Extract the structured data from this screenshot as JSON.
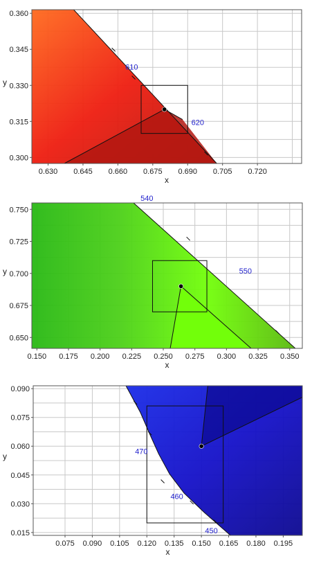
{
  "chart_data": [
    {
      "type": "chromaticity-zoom",
      "region": "red",
      "xlabel": "x",
      "ylabel": "y",
      "xlim": [
        0.623,
        0.739
      ],
      "ylim": [
        0.2975,
        0.3615
      ],
      "xticks": [
        {
          "v": 0.63,
          "label": "0.630"
        },
        {
          "v": 0.645,
          "label": "0.645"
        },
        {
          "v": 0.66,
          "label": "0.660"
        },
        {
          "v": 0.675,
          "label": "0.675"
        },
        {
          "v": 0.69,
          "label": "0.690"
        },
        {
          "v": 0.705,
          "label": "0.705"
        },
        {
          "v": 0.72,
          "label": "0.720"
        }
      ],
      "yticks": [
        {
          "v": 0.3,
          "label": "0.300"
        },
        {
          "v": 0.315,
          "label": "0.315"
        },
        {
          "v": 0.33,
          "label": "0.330"
        },
        {
          "v": 0.345,
          "label": "0.345"
        },
        {
          "v": 0.36,
          "label": "0.360"
        }
      ],
      "xgrid": [
        0.63,
        0.645,
        0.66,
        0.675,
        0.69,
        0.705,
        0.72,
        0.735
      ],
      "ygrid": [
        0.3,
        0.3075,
        0.315,
        0.3225,
        0.33,
        0.3375,
        0.345,
        0.3525,
        0.36
      ],
      "fill_colors": [
        "#ff6a1e",
        "#ee1d10",
        "#b31810"
      ],
      "locus": [
        [
          0.641,
          0.3615
        ],
        [
          0.7025,
          0.2975
        ]
      ],
      "locus_ticks": [
        [
          0.658,
          0.3447
        ],
        [
          0.6666,
          0.3331
        ],
        [
          0.6798,
          0.3199
        ],
        [
          0.6978,
          0.3015
        ]
      ],
      "wavelength_labels": [
        {
          "text": "610",
          "at": [
            0.6632,
            0.3365
          ]
        },
        {
          "text": "620",
          "at": [
            0.6916,
            0.3135
          ]
        }
      ],
      "box": {
        "x": [
          0.67,
          0.69
        ],
        "y": [
          0.31,
          0.33
        ]
      },
      "point": [
        0.68,
        0.32
      ],
      "region_border": [
        [
          0.637,
          0.2975
        ],
        [
          0.68,
          0.32
        ],
        [
          0.6878,
          0.3158
        ]
      ]
    },
    {
      "type": "chromaticity-zoom",
      "region": "green",
      "xlabel": "x",
      "ylabel": "y",
      "xlim": [
        0.146,
        0.36
      ],
      "ylim": [
        0.6415,
        0.755
      ],
      "xticks": [
        {
          "v": 0.15,
          "label": "0.150"
        },
        {
          "v": 0.175,
          "label": "0.175"
        },
        {
          "v": 0.2,
          "label": "0.200"
        },
        {
          "v": 0.225,
          "label": "0.225"
        },
        {
          "v": 0.25,
          "label": "0.250"
        },
        {
          "v": 0.275,
          "label": "0.275"
        },
        {
          "v": 0.3,
          "label": "0.300"
        },
        {
          "v": 0.325,
          "label": "0.325"
        },
        {
          "v": 0.35,
          "label": "0.350"
        }
      ],
      "yticks": [
        {
          "v": 0.65,
          "label": "0.650"
        },
        {
          "v": 0.675,
          "label": "0.675"
        },
        {
          "v": 0.7,
          "label": "0.700"
        },
        {
          "v": 0.725,
          "label": "0.725"
        },
        {
          "v": 0.75,
          "label": "0.750"
        }
      ],
      "xgrid": [
        0.15,
        0.175,
        0.2,
        0.225,
        0.25,
        0.275,
        0.3,
        0.325,
        0.35
      ],
      "ygrid": [
        0.65,
        0.6625,
        0.675,
        0.6875,
        0.7,
        0.7125,
        0.725,
        0.7375,
        0.75
      ],
      "fill_colors": [
        "#28b814",
        "#4cd018",
        "#72ff0a",
        "#5ab80e"
      ],
      "locus": [
        [
          0.2265,
          0.755
        ],
        [
          0.3545,
          0.6415
        ]
      ],
      "locus_ticks": [
        [
          0.2695,
          0.7268
        ],
        [
          0.34,
          0.654
        ]
      ],
      "wavelength_labels": [
        {
          "text": "540",
          "at": [
            0.232,
            0.7565
          ]
        },
        {
          "text": "550",
          "at": [
            0.31,
            0.7
          ]
        }
      ],
      "box": {
        "x": [
          0.2415,
          0.2845
        ],
        "y": [
          0.67,
          0.71
        ]
      },
      "point": [
        0.264,
        0.69
      ],
      "region_border": [
        [
          0.2555,
          0.6415
        ],
        [
          0.264,
          0.69
        ],
        [
          0.3195,
          0.6415
        ]
      ]
    },
    {
      "type": "chromaticity-zoom",
      "region": "blue",
      "xlabel": "x",
      "ylabel": "y",
      "xlim": [
        0.0575,
        0.2055
      ],
      "ylim": [
        0.0135,
        0.0915
      ],
      "xticks": [
        {
          "v": 0.075,
          "label": "0.075"
        },
        {
          "v": 0.09,
          "label": "0.090"
        },
        {
          "v": 0.105,
          "label": "0.105"
        },
        {
          "v": 0.12,
          "label": "0.120"
        },
        {
          "v": 0.135,
          "label": "0.135"
        },
        {
          "v": 0.15,
          "label": "0.150"
        },
        {
          "v": 0.165,
          "label": "0.165"
        },
        {
          "v": 0.18,
          "label": "0.180"
        },
        {
          "v": 0.195,
          "label": "0.195"
        }
      ],
      "yticks": [
        {
          "v": 0.015,
          "label": "0.015"
        },
        {
          "v": 0.03,
          "label": "0.030"
        },
        {
          "v": 0.045,
          "label": "0.045"
        },
        {
          "v": 0.06,
          "label": "0.060"
        },
        {
          "v": 0.075,
          "label": "0.075"
        },
        {
          "v": 0.09,
          "label": "0.090"
        }
      ],
      "xgrid": [
        0.075,
        0.09,
        0.105,
        0.12,
        0.135,
        0.15,
        0.165,
        0.18,
        0.195
      ],
      "ygrid": [
        0.015,
        0.0225,
        0.03,
        0.0375,
        0.045,
        0.0525,
        0.06,
        0.0675,
        0.075,
        0.0825,
        0.09
      ],
      "fill_colors": [
        "#1a2ce8",
        "#1410c8",
        "#0c0890"
      ],
      "locus": [
        [
          0.1085,
          0.0915
        ],
        [
          0.1165,
          0.0775
        ],
        [
          0.1215,
          0.0665
        ],
        [
          0.1265,
          0.056
        ],
        [
          0.1325,
          0.0455
        ],
        [
          0.1405,
          0.0355
        ],
        [
          0.1515,
          0.0255
        ],
        [
          0.166,
          0.0135
        ]
      ],
      "locus_ticks": [
        [
          0.1135,
          0.0825
        ],
        [
          0.1215,
          0.0665
        ],
        [
          0.1285,
          0.0415
        ],
        [
          0.1445,
          0.0305
        ],
        [
          0.1575,
          0.0205
        ]
      ],
      "wavelength_labels": [
        {
          "text": "470",
          "at": [
            0.1135,
            0.056
          ]
        },
        {
          "text": "460",
          "at": [
            0.133,
            0.0325
          ]
        },
        {
          "text": "450",
          "at": [
            0.152,
            0.0145
          ]
        }
      ],
      "box": {
        "x": [
          0.12,
          0.162
        ],
        "y": [
          0.02,
          0.081
        ]
      },
      "point": [
        0.15,
        0.06
      ],
      "region_border": [
        [
          0.1535,
          0.0915
        ],
        [
          0.15,
          0.06
        ],
        [
          0.2055,
          0.0855
        ]
      ]
    }
  ]
}
